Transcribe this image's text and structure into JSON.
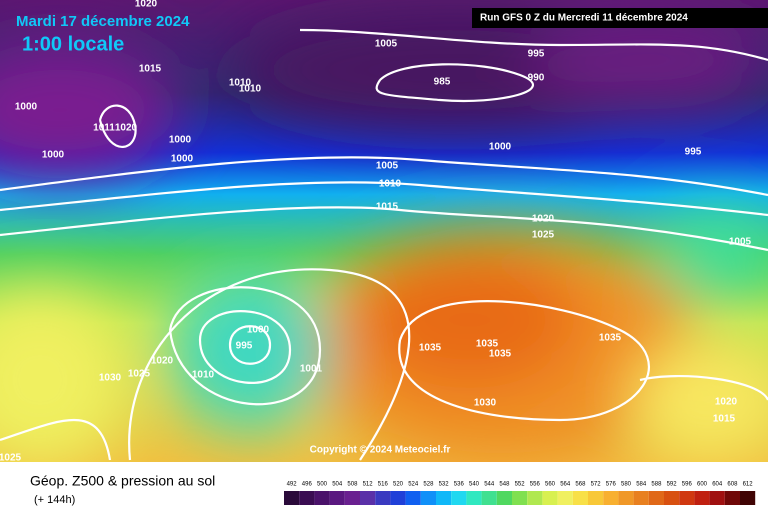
{
  "header": {
    "date": "Mardi 17 décembre 2024",
    "time": "1:00 locale",
    "run": "Run GFS 0 Z du Mercredi 11 décembre 2024"
  },
  "isobar_labels": [
    1020,
    1005,
    995,
    1015,
    1010,
    1010,
    985,
    990,
    1000,
    1011,
    1020,
    1000,
    1000,
    1000,
    1000,
    995,
    1005,
    1010,
    1015,
    1020,
    1025,
    1005,
    1000,
    995,
    1020,
    1030,
    1025,
    1010,
    1001,
    1035,
    1035,
    1035,
    1035,
    1030,
    1020,
    1015,
    1025
  ],
  "copyright": "Copyright © 2024 Meteociel.fr",
  "footer": {
    "title": "Géop. Z500 & pression au sol",
    "lead": "(+ 144h)"
  },
  "scale": {
    "labels": [
      492,
      496,
      500,
      504,
      508,
      512,
      516,
      520,
      524,
      528,
      532,
      536,
      540,
      544,
      548,
      552,
      556,
      560,
      564,
      568,
      572,
      576,
      580,
      584,
      588,
      592,
      596,
      600,
      604,
      608,
      612
    ],
    "colors": [
      "#2a0a3a",
      "#3a0c52",
      "#4a126a",
      "#5a1880",
      "#6a2090",
      "#5a30a8",
      "#3a3ac0",
      "#2040d8",
      "#1060f0",
      "#1090f8",
      "#10b8f8",
      "#20d8f0",
      "#30e8c0",
      "#40e090",
      "#50d860",
      "#80e050",
      "#b0e850",
      "#d8f050",
      "#f0f060",
      "#f8e048",
      "#f8c838",
      "#f8b030",
      "#f09828",
      "#e88020",
      "#e06818",
      "#d85010",
      "#d03810",
      "#c02010",
      "#a01010",
      "#700808",
      "#400404"
    ]
  }
}
